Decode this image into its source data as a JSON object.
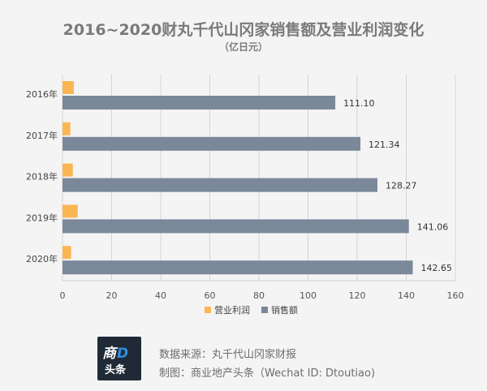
{
  "chart_data": {
    "type": "bar",
    "orientation": "horizontal",
    "title": "2016~2020财丸千代山冈家销售额及营业利润变化",
    "subtitle": "（亿日元）",
    "categories": [
      "2016年",
      "2017年",
      "2018年",
      "2019年",
      "2020年"
    ],
    "series": [
      {
        "name": "营业利润",
        "values": [
          4.6,
          3.2,
          4.2,
          6.2,
          3.5
        ],
        "color": "#fbb654"
      },
      {
        "name": "销售额",
        "values": [
          111.1,
          121.34,
          128.27,
          141.06,
          142.65
        ],
        "color": "#7a8899"
      }
    ],
    "data_labels": [
      "111.10",
      "121.34",
      "128.27",
      "141.06",
      "142.65"
    ],
    "xlim": [
      0,
      160
    ],
    "xticks": [
      "0",
      "20",
      "40",
      "60",
      "80",
      "100",
      "120",
      "140",
      "160"
    ],
    "grid": true,
    "legend_position": "bottom"
  },
  "footer": {
    "logo_top": "商",
    "logo_top_accent": "D",
    "logo_bottom": "头条",
    "source": "数据来源：丸千代山冈家财报",
    "maker": "制图：商业地产头条（Wechat ID: Dtoutiao)"
  }
}
